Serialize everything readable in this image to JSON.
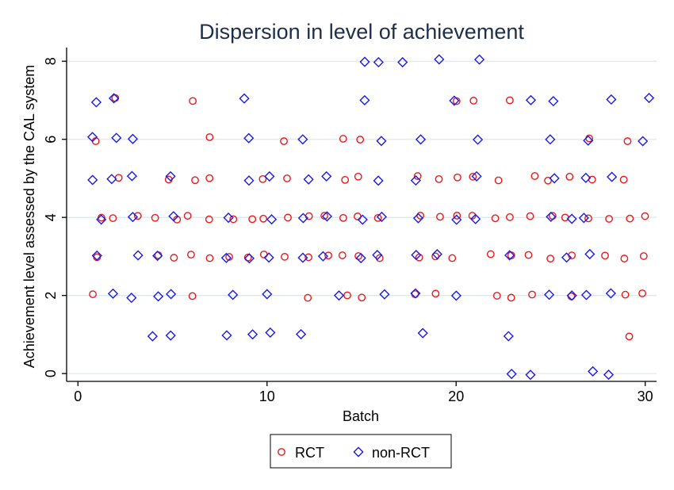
{
  "chart_data": {
    "type": "scatter",
    "title": "Dispersion in level of achievement",
    "xlabel": "Batch",
    "ylabel": "Achievement level assessed by the CAL system",
    "xlim": [
      -0.6,
      30.6
    ],
    "ylim": [
      -0.2,
      8.35
    ],
    "xticks": [
      0,
      10,
      20,
      30
    ],
    "yticks": [
      0,
      2,
      4,
      6,
      8
    ],
    "grid": true,
    "legend_position": "bottom",
    "series": [
      {
        "name": "RCT",
        "marker": "circle",
        "color": "#e8191b",
        "points": [
          [
            1,
            2
          ],
          [
            1,
            3
          ],
          [
            1,
            4
          ],
          [
            1,
            6
          ],
          [
            2,
            4
          ],
          [
            2,
            5
          ],
          [
            2,
            7
          ],
          [
            3,
            4
          ],
          [
            4,
            3
          ],
          [
            4,
            4
          ],
          [
            5,
            3
          ],
          [
            5,
            4
          ],
          [
            5,
            5
          ],
          [
            6,
            2
          ],
          [
            6,
            3
          ],
          [
            6,
            4
          ],
          [
            6,
            5
          ],
          [
            6,
            7
          ],
          [
            7,
            3
          ],
          [
            7,
            4
          ],
          [
            7,
            5
          ],
          [
            7,
            6
          ],
          [
            8,
            3
          ],
          [
            8,
            4
          ],
          [
            9,
            3
          ],
          [
            9,
            4
          ],
          [
            10,
            3
          ],
          [
            10,
            4
          ],
          [
            10,
            5
          ],
          [
            11,
            3
          ],
          [
            11,
            4
          ],
          [
            11,
            5
          ],
          [
            11,
            6
          ],
          [
            12,
            2
          ],
          [
            12,
            3
          ],
          [
            12,
            4
          ],
          [
            13,
            3
          ],
          [
            13,
            4
          ],
          [
            14,
            2
          ],
          [
            14,
            3
          ],
          [
            14,
            4
          ],
          [
            14,
            5
          ],
          [
            14,
            6
          ],
          [
            15,
            2
          ],
          [
            15,
            3
          ],
          [
            15,
            4
          ],
          [
            15,
            5
          ],
          [
            15,
            6
          ],
          [
            16,
            3
          ],
          [
            16,
            4
          ],
          [
            18,
            2
          ],
          [
            18,
            3
          ],
          [
            18,
            4
          ],
          [
            18,
            5
          ],
          [
            19,
            2
          ],
          [
            19,
            3
          ],
          [
            19,
            4
          ],
          [
            19,
            5
          ],
          [
            20,
            3
          ],
          [
            20,
            4
          ],
          [
            20,
            5
          ],
          [
            20,
            7
          ],
          [
            21,
            4
          ],
          [
            21,
            5
          ],
          [
            21,
            7
          ],
          [
            22,
            2
          ],
          [
            22,
            3
          ],
          [
            22,
            4
          ],
          [
            22,
            5
          ],
          [
            23,
            2
          ],
          [
            23,
            3
          ],
          [
            23,
            4
          ],
          [
            23,
            7
          ],
          [
            24,
            2
          ],
          [
            24,
            3
          ],
          [
            24,
            4
          ],
          [
            24,
            5
          ],
          [
            25,
            3
          ],
          [
            25,
            4
          ],
          [
            25,
            5
          ],
          [
            26,
            2
          ],
          [
            26,
            3
          ],
          [
            26,
            4
          ],
          [
            26,
            5
          ],
          [
            27,
            4
          ],
          [
            27,
            5
          ],
          [
            27,
            6
          ],
          [
            28,
            3
          ],
          [
            28,
            4
          ],
          [
            29,
            1
          ],
          [
            29,
            2
          ],
          [
            29,
            3
          ],
          [
            29,
            4
          ],
          [
            29,
            5
          ],
          [
            29,
            6
          ],
          [
            30,
            2
          ],
          [
            30,
            3
          ],
          [
            30,
            4
          ]
        ]
      },
      {
        "name": "non-RCT",
        "marker": "diamond",
        "color": "#1a1ae6",
        "points": [
          [
            1,
            3
          ],
          [
            1,
            4
          ],
          [
            1,
            5
          ],
          [
            1,
            6
          ],
          [
            1,
            7
          ],
          [
            2,
            2
          ],
          [
            2,
            5
          ],
          [
            2,
            6
          ],
          [
            2,
            7
          ],
          [
            3,
            2
          ],
          [
            3,
            3
          ],
          [
            3,
            4
          ],
          [
            3,
            5
          ],
          [
            3,
            6
          ],
          [
            4,
            1
          ],
          [
            4,
            2
          ],
          [
            4,
            3
          ],
          [
            5,
            1
          ],
          [
            5,
            2
          ],
          [
            5,
            4
          ],
          [
            5,
            5
          ],
          [
            8,
            1
          ],
          [
            8,
            2
          ],
          [
            8,
            3
          ],
          [
            8,
            4
          ],
          [
            9,
            1
          ],
          [
            9,
            3
          ],
          [
            9,
            5
          ],
          [
            9,
            6
          ],
          [
            9,
            7
          ],
          [
            10,
            1
          ],
          [
            10,
            2
          ],
          [
            10,
            3
          ],
          [
            10,
            4
          ],
          [
            10,
            5
          ],
          [
            12,
            1
          ],
          [
            12,
            3
          ],
          [
            12,
            4
          ],
          [
            12,
            5
          ],
          [
            12,
            6
          ],
          [
            13,
            3
          ],
          [
            13,
            4
          ],
          [
            13,
            5
          ],
          [
            14,
            2
          ],
          [
            15,
            3
          ],
          [
            15,
            4
          ],
          [
            15,
            7
          ],
          [
            15,
            8
          ],
          [
            16,
            2
          ],
          [
            16,
            3
          ],
          [
            16,
            4
          ],
          [
            16,
            5
          ],
          [
            16,
            6
          ],
          [
            16,
            8
          ],
          [
            17,
            8
          ],
          [
            18,
            1
          ],
          [
            18,
            2
          ],
          [
            18,
            3
          ],
          [
            18,
            4
          ],
          [
            18,
            5
          ],
          [
            18,
            6
          ],
          [
            19,
            3
          ],
          [
            19,
            8
          ],
          [
            20,
            2
          ],
          [
            20,
            4
          ],
          [
            20,
            7
          ],
          [
            21,
            4
          ],
          [
            21,
            5
          ],
          [
            21,
            6
          ],
          [
            21,
            8
          ],
          [
            23,
            0
          ],
          [
            23,
            1
          ],
          [
            23,
            3
          ],
          [
            24,
            0
          ],
          [
            24,
            7
          ],
          [
            25,
            2
          ],
          [
            25,
            4
          ],
          [
            25,
            5
          ],
          [
            25,
            6
          ],
          [
            25,
            7
          ],
          [
            26,
            2
          ],
          [
            26,
            3
          ],
          [
            26,
            4
          ],
          [
            27,
            0
          ],
          [
            27,
            2
          ],
          [
            27,
            3
          ],
          [
            27,
            4
          ],
          [
            27,
            5
          ],
          [
            27,
            6
          ],
          [
            28,
            0
          ],
          [
            28,
            2
          ],
          [
            28,
            5
          ],
          [
            28,
            7
          ],
          [
            30,
            6
          ],
          [
            30,
            7
          ]
        ]
      }
    ]
  }
}
